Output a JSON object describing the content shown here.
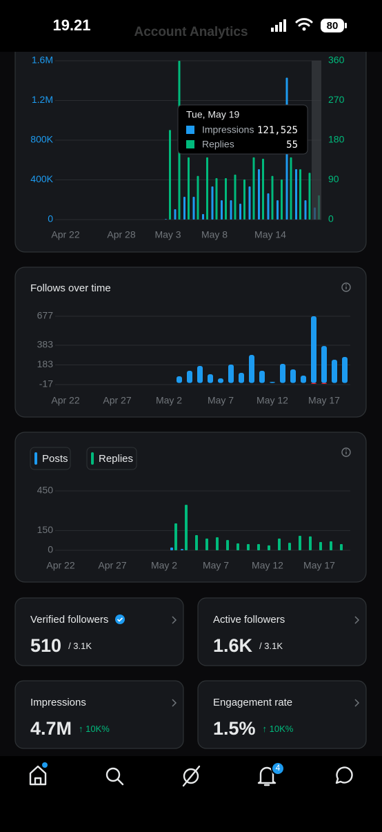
{
  "status_bar": {
    "time": "19.21",
    "battery": "80"
  },
  "header": {
    "title": "Account Analytics"
  },
  "chart_data": [
    {
      "type": "bar",
      "categories": [
        "Apr 22",
        null,
        null,
        null,
        null,
        null,
        "Apr 28",
        null,
        null,
        null,
        null,
        "May 3",
        null,
        null,
        null,
        null,
        "May 8",
        null,
        null,
        null,
        null,
        null,
        "May 14",
        null,
        null,
        null,
        null,
        null
      ],
      "series": [
        {
          "name": "Impressions",
          "color": "#1d9bf0",
          "values": [
            0,
            0,
            0,
            0,
            0,
            0,
            0,
            0,
            0,
            0,
            0,
            5000,
            104000,
            230000,
            230000,
            56000,
            334000,
            195000,
            195000,
            160000,
            334000,
            508000,
            264000,
            195000,
            1430000,
            508000,
            195000,
            121525
          ]
        },
        {
          "name": "Replies",
          "color": "#00ba7c",
          "axis": "y2",
          "values": [
            0,
            0,
            0,
            0,
            0,
            0,
            0,
            0,
            0,
            0,
            0,
            203,
            360,
            141,
            99,
            141,
            94,
            94,
            102,
            91,
            141,
            138,
            99,
            91,
            141,
            114,
            106,
            55
          ]
        }
      ],
      "ylim": [
        0,
        1600000
      ],
      "yticks": [
        0,
        {
          "value": 400000,
          "label": "400K"
        },
        {
          "value": 800000,
          "label": "800K"
        },
        {
          "value": 1200000,
          "label": "1.2M"
        },
        {
          "value": 1600000,
          "label": "1.6M"
        }
      ],
      "y2lim": [
        0,
        360
      ],
      "y2ticks": [
        0,
        90,
        180,
        270,
        360
      ],
      "grid": true,
      "tooltip": {
        "date": "Tue, May 19",
        "impressions": "121,525",
        "replies": "55"
      }
    },
    {
      "type": "bar",
      "title": "Follows over time",
      "categories": [
        "Apr 22",
        null,
        null,
        null,
        null,
        "Apr 27",
        null,
        null,
        null,
        null,
        "May 2",
        null,
        null,
        null,
        null,
        "May 7",
        null,
        null,
        null,
        null,
        "May 12",
        null,
        null,
        null,
        null,
        "May 17",
        null,
        null
      ],
      "series": [
        {
          "color": "#1d9bf0",
          "values": [
            0,
            0,
            0,
            0,
            0,
            0,
            0,
            0,
            0,
            0,
            0,
            67,
            123,
            172,
            88,
            46,
            186,
            102,
            284,
            123,
            11,
            193,
            137,
            74,
            677,
            375,
            235,
            263
          ]
        },
        {
          "color": "#f4212e",
          "values": [
            0,
            0,
            0,
            0,
            0,
            0,
            0,
            0,
            0,
            0,
            0,
            0,
            0,
            0,
            0,
            0,
            0,
            0,
            0,
            0,
            0,
            0,
            0,
            0,
            -10,
            -10,
            0,
            0
          ]
        }
      ],
      "ylim": [
        -17,
        677
      ],
      "yticks": [
        -17,
        183,
        383,
        677
      ],
      "grid": true
    },
    {
      "type": "bar",
      "categories": [
        "Apr 22",
        null,
        null,
        null,
        null,
        "Apr 27",
        null,
        null,
        null,
        null,
        "May 2",
        null,
        null,
        null,
        null,
        "May 7",
        null,
        null,
        null,
        null,
        "May 12",
        null,
        null,
        null,
        null,
        "May 17",
        null,
        null
      ],
      "series": [
        {
          "name": "Posts",
          "color": "#1d9bf0",
          "values": [
            0,
            0,
            0,
            0,
            0,
            0,
            0,
            0,
            0,
            0,
            0,
            21,
            10,
            0,
            0,
            0,
            0,
            0,
            0,
            0,
            0,
            0,
            0,
            0,
            0,
            0,
            0,
            0
          ]
        },
        {
          "name": "Replies",
          "color": "#00ba7c",
          "values": [
            0,
            0,
            0,
            0,
            0,
            0,
            0,
            0,
            0,
            0,
            0,
            204,
            345,
            115,
            89,
            99,
            78,
            52,
            47,
            47,
            37,
            89,
            57,
            110,
            105,
            63,
            68,
            47
          ]
        }
      ],
      "ylim": [
        0,
        450
      ],
      "yticks": [
        0,
        150,
        450
      ],
      "grid": true
    }
  ],
  "cards": [
    {
      "title": "Verified followers",
      "value": "510",
      "sub": "/ 3.1K",
      "sub_color": "#e7e9ea"
    },
    {
      "title": "Active followers",
      "value": "1.6K",
      "sub": "/ 3.1K",
      "sub_color": "#e7e9ea"
    },
    {
      "title": "Impressions",
      "value": "4.7M",
      "sub": "↑ 10K%",
      "sub_color": "#00ba7c"
    },
    {
      "title": "Engagement rate",
      "value": "1.5%",
      "sub": "↑ 10K%",
      "sub_color": "#00ba7c"
    }
  ],
  "nav": {
    "notification_count": "4"
  }
}
